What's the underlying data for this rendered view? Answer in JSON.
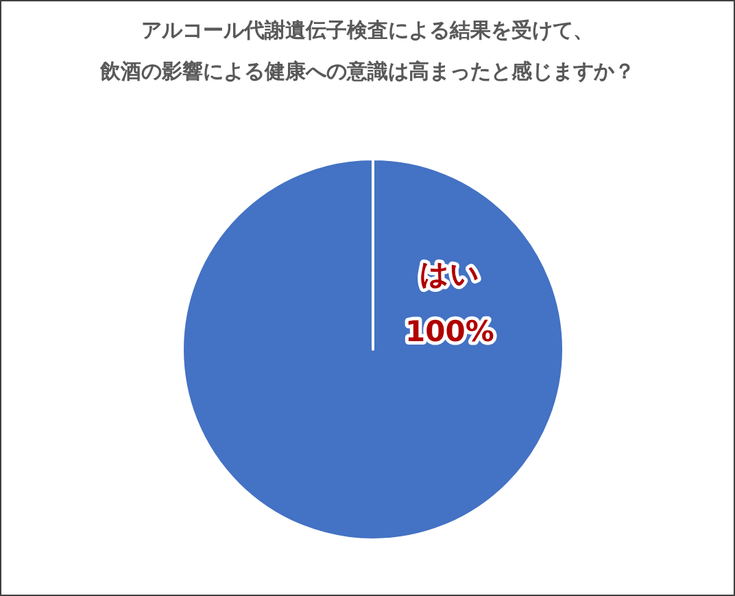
{
  "chart_data": {
    "type": "pie",
    "title": "アルコール代謝遺伝子検査による結果を受けて、飲酒の影響による健康への意識は高まったと感じますか？",
    "categories": [
      "はい"
    ],
    "values": [
      100
    ],
    "colors": [
      "#4472c4"
    ],
    "value_labels": [
      "100%"
    ]
  }
}
